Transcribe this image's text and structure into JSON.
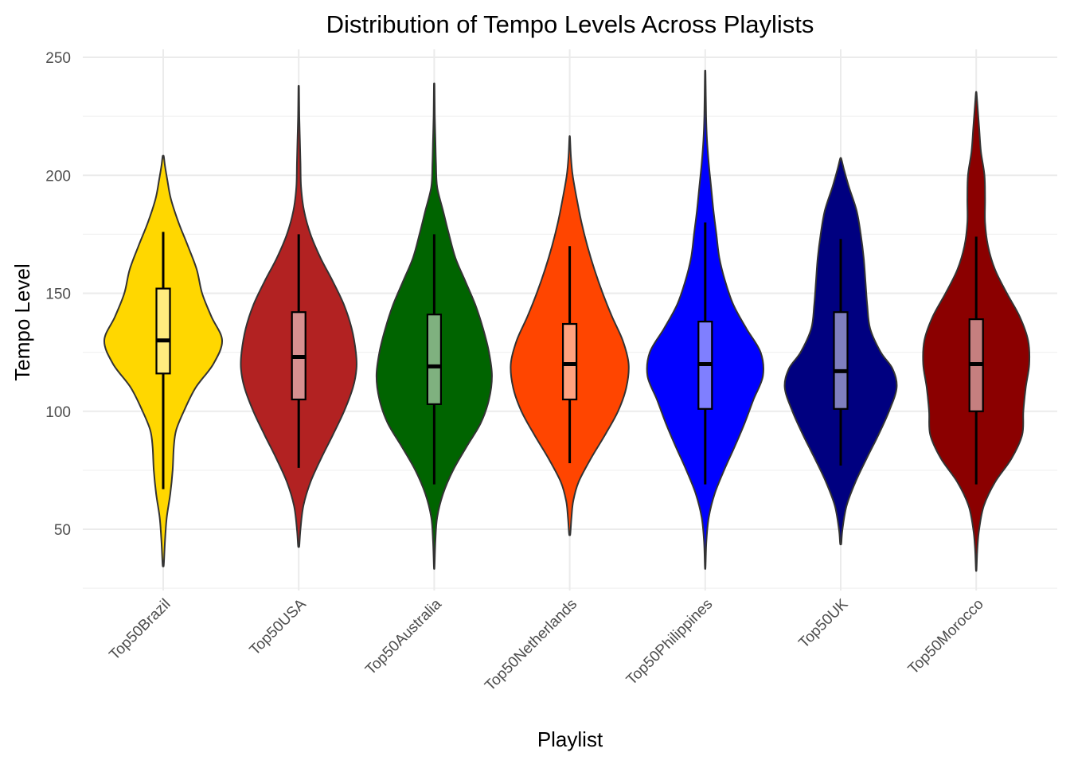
{
  "chart_data": {
    "type": "violin",
    "title": "Distribution of Tempo Levels Across Playlists",
    "xlabel": "Playlist",
    "ylabel": "Tempo Level",
    "ylim": [
      25,
      253
    ],
    "yticks": [
      50,
      100,
      150,
      200,
      250
    ],
    "grid": true,
    "legend": "none",
    "categories": [
      "Top50Brazil",
      "Top50USA",
      "Top50Australia",
      "Top50Netherlands",
      "Top50Philippines",
      "Top50UK",
      "Top50Morocco"
    ],
    "series": [
      {
        "category": "Top50Brazil",
        "color": "#FFD700",
        "min": 35,
        "max": 208,
        "box": {
          "lower_whisker": 67,
          "q1": 116,
          "median": 130,
          "q3": 152,
          "upper_whisker": 176
        },
        "density": [
          [
            35,
            0.01
          ],
          [
            45,
            0.03
          ],
          [
            55,
            0.06
          ],
          [
            65,
            0.12
          ],
          [
            75,
            0.16
          ],
          [
            85,
            0.18
          ],
          [
            92,
            0.22
          ],
          [
            100,
            0.35
          ],
          [
            110,
            0.55
          ],
          [
            120,
            0.85
          ],
          [
            130,
            1.0
          ],
          [
            140,
            0.82
          ],
          [
            150,
            0.66
          ],
          [
            160,
            0.57
          ],
          [
            170,
            0.42
          ],
          [
            180,
            0.26
          ],
          [
            190,
            0.13
          ],
          [
            198,
            0.07
          ],
          [
            204,
            0.03
          ],
          [
            208,
            0.01
          ]
        ]
      },
      {
        "category": "Top50USA",
        "color": "#B22222",
        "min": 43,
        "max": 237,
        "box": {
          "lower_whisker": 76,
          "q1": 105,
          "median": 123,
          "q3": 142,
          "upper_whisker": 175
        },
        "density": [
          [
            43,
            0.01
          ],
          [
            50,
            0.03
          ],
          [
            60,
            0.08
          ],
          [
            70,
            0.2
          ],
          [
            80,
            0.38
          ],
          [
            90,
            0.58
          ],
          [
            100,
            0.77
          ],
          [
            110,
            0.92
          ],
          [
            118,
            0.98
          ],
          [
            125,
            0.97
          ],
          [
            135,
            0.9
          ],
          [
            145,
            0.77
          ],
          [
            155,
            0.58
          ],
          [
            165,
            0.37
          ],
          [
            175,
            0.2
          ],
          [
            185,
            0.09
          ],
          [
            195,
            0.04
          ],
          [
            205,
            0.03
          ],
          [
            215,
            0.02
          ],
          [
            225,
            0.01
          ],
          [
            237,
            0.005
          ]
        ]
      },
      {
        "category": "Top50Australia",
        "color": "#006400",
        "min": 34,
        "max": 238,
        "box": {
          "lower_whisker": 69,
          "q1": 103,
          "median": 119,
          "q3": 141,
          "upper_whisker": 175
        },
        "density": [
          [
            34,
            0.005
          ],
          [
            45,
            0.02
          ],
          [
            55,
            0.05
          ],
          [
            65,
            0.15
          ],
          [
            75,
            0.32
          ],
          [
            85,
            0.55
          ],
          [
            95,
            0.79
          ],
          [
            105,
            0.93
          ],
          [
            115,
            0.98
          ],
          [
            125,
            0.93
          ],
          [
            135,
            0.83
          ],
          [
            145,
            0.7
          ],
          [
            155,
            0.53
          ],
          [
            165,
            0.36
          ],
          [
            175,
            0.25
          ],
          [
            185,
            0.15
          ],
          [
            195,
            0.05
          ],
          [
            205,
            0.03
          ],
          [
            215,
            0.02
          ],
          [
            225,
            0.01
          ],
          [
            238,
            0.005
          ]
        ]
      },
      {
        "category": "Top50Netherlands",
        "color": "#FF4500",
        "min": 48,
        "max": 216,
        "box": {
          "lower_whisker": 78,
          "q1": 105,
          "median": 120,
          "q3": 137,
          "upper_whisker": 170
        },
        "density": [
          [
            48,
            0.01
          ],
          [
            55,
            0.03
          ],
          [
            62,
            0.06
          ],
          [
            70,
            0.15
          ],
          [
            80,
            0.36
          ],
          [
            90,
            0.6
          ],
          [
            100,
            0.82
          ],
          [
            110,
            0.96
          ],
          [
            120,
            1.0
          ],
          [
            130,
            0.9
          ],
          [
            140,
            0.72
          ],
          [
            150,
            0.56
          ],
          [
            160,
            0.42
          ],
          [
            170,
            0.3
          ],
          [
            180,
            0.2
          ],
          [
            190,
            0.12
          ],
          [
            200,
            0.05
          ],
          [
            208,
            0.02
          ],
          [
            216,
            0.005
          ]
        ]
      },
      {
        "category": "Top50Philippines",
        "color": "#0000FF",
        "min": 34,
        "max": 243,
        "box": {
          "lower_whisker": 69,
          "q1": 101,
          "median": 120,
          "q3": 138,
          "upper_whisker": 180
        },
        "density": [
          [
            34,
            0.005
          ],
          [
            45,
            0.02
          ],
          [
            55,
            0.06
          ],
          [
            65,
            0.16
          ],
          [
            75,
            0.32
          ],
          [
            85,
            0.5
          ],
          [
            95,
            0.67
          ],
          [
            105,
            0.82
          ],
          [
            115,
            0.98
          ],
          [
            125,
            0.94
          ],
          [
            135,
            0.7
          ],
          [
            145,
            0.48
          ],
          [
            155,
            0.34
          ],
          [
            165,
            0.24
          ],
          [
            175,
            0.19
          ],
          [
            185,
            0.14
          ],
          [
            195,
            0.1
          ],
          [
            205,
            0.06
          ],
          [
            215,
            0.03
          ],
          [
            225,
            0.015
          ],
          [
            243,
            0.005
          ]
        ]
      },
      {
        "category": "Top50UK",
        "color": "#000080",
        "min": 44,
        "max": 207,
        "box": {
          "lower_whisker": 77,
          "q1": 101,
          "median": 117,
          "q3": 142,
          "upper_whisker": 173
        },
        "density": [
          [
            44,
            0.01
          ],
          [
            50,
            0.03
          ],
          [
            60,
            0.1
          ],
          [
            70,
            0.25
          ],
          [
            80,
            0.44
          ],
          [
            90,
            0.64
          ],
          [
            100,
            0.82
          ],
          [
            110,
            0.95
          ],
          [
            118,
            0.88
          ],
          [
            125,
            0.68
          ],
          [
            135,
            0.5
          ],
          [
            145,
            0.45
          ],
          [
            155,
            0.42
          ],
          [
            165,
            0.39
          ],
          [
            175,
            0.34
          ],
          [
            185,
            0.27
          ],
          [
            195,
            0.14
          ],
          [
            202,
            0.06
          ],
          [
            207,
            0.01
          ]
        ]
      },
      {
        "category": "Top50Morocco",
        "color": "#8B0000",
        "min": 33,
        "max": 235,
        "box": {
          "lower_whisker": 69,
          "q1": 100,
          "median": 120,
          "q3": 139,
          "upper_whisker": 174
        },
        "density": [
          [
            33,
            0.005
          ],
          [
            42,
            0.02
          ],
          [
            50,
            0.05
          ],
          [
            60,
            0.13
          ],
          [
            70,
            0.32
          ],
          [
            80,
            0.6
          ],
          [
            90,
            0.78
          ],
          [
            100,
            0.8
          ],
          [
            110,
            0.84
          ],
          [
            120,
            0.9
          ],
          [
            130,
            0.88
          ],
          [
            140,
            0.74
          ],
          [
            150,
            0.52
          ],
          [
            160,
            0.32
          ],
          [
            170,
            0.2
          ],
          [
            180,
            0.15
          ],
          [
            190,
            0.15
          ],
          [
            200,
            0.14
          ],
          [
            210,
            0.08
          ],
          [
            220,
            0.05
          ],
          [
            230,
            0.02
          ],
          [
            235,
            0.005
          ]
        ]
      }
    ]
  }
}
